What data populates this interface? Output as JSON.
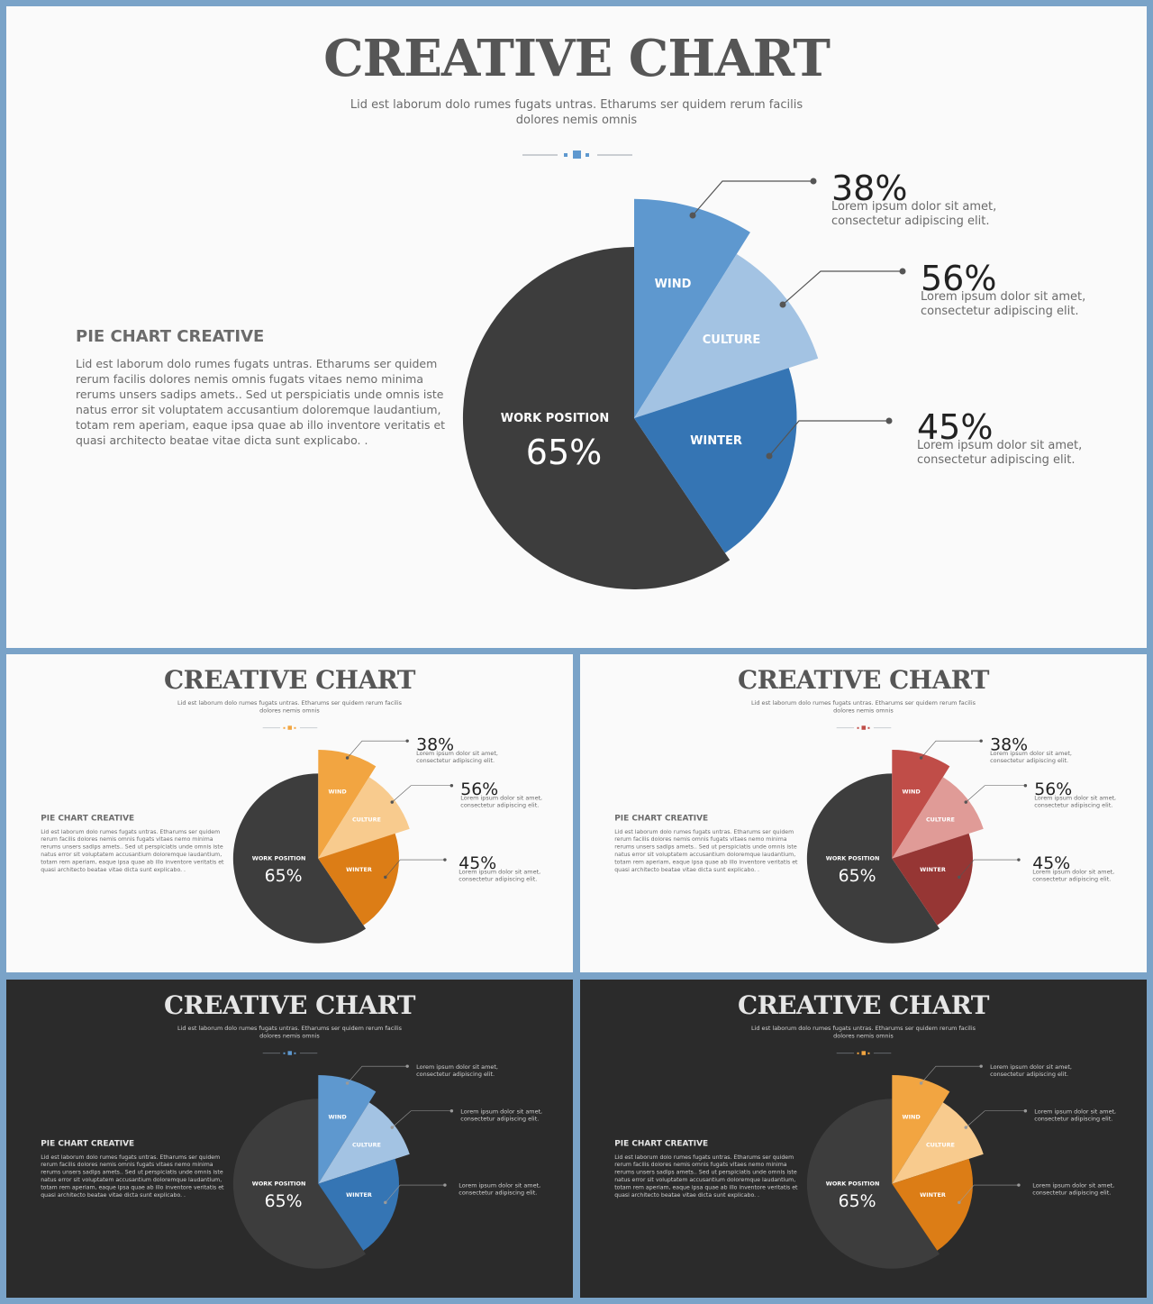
{
  "chart_data": [
    {
      "type": "pie",
      "title": "CREATIVE CHART",
      "subtitle_lines": [
        "Lid est laborum dolo rumes fugats untras. Etharums ser quidem rerum facilis",
        "dolores nemis omnis"
      ],
      "section_heading": "PIE CHART CREATIVE",
      "section_body_lines": [
        "Lid est laborum dolo rumes fugats untras. Etharums ser quidem",
        "rerum facilis dolores nemis omnis fugats vitaes nemo minima",
        "rerums unsers sadips amets.. Sed ut perspiciatis unde omnis iste",
        "natus error sit voluptatem accusantium doloremque laudantium,",
        "totam rem aperiam, eaque ipsa quae ab illo inventore veritatis et",
        "quasi architecto beatae vitae dicta sunt explicabo. ."
      ],
      "slices": [
        {
          "label": "WORK POSITION",
          "value": 65,
          "display": "65%"
        },
        {
          "label": "WIND",
          "value": 38,
          "display": "38%"
        },
        {
          "label": "CULTURE",
          "value": 56,
          "display": "56%"
        },
        {
          "label": "WINTER",
          "value": 45,
          "display": "45%"
        }
      ],
      "callouts": [
        {
          "value": "38%",
          "lines": [
            "Lorem ipsum dolor sit amet,",
            "consectetur adipiscing elit."
          ]
        },
        {
          "value": "56%",
          "lines": [
            "Lorem ipsum dolor sit amet,",
            "consectetur adipiscing elit."
          ]
        },
        {
          "value": "45%",
          "lines": [
            "Lorem ipsum dolor sit amet,",
            "consectetur adipiscing elit."
          ]
        }
      ]
    }
  ],
  "variants": [
    {
      "key": "main",
      "theme": "light",
      "colors": {
        "dark": "#3d3d3d",
        "wind": "#5e98cf",
        "culture": "#a3c3e3",
        "winter": "#3575b4",
        "accent": "#5e98cf"
      },
      "show_values": true
    },
    {
      "key": "orange-light",
      "theme": "light",
      "colors": {
        "dark": "#3d3d3d",
        "wind": "#f2a541",
        "culture": "#f8cb8e",
        "winter": "#dc7d16",
        "accent": "#f2a541"
      },
      "show_values": true
    },
    {
      "key": "red-light",
      "theme": "light",
      "colors": {
        "dark": "#3d3d3d",
        "wind": "#c04d48",
        "culture": "#e09b97",
        "winter": "#963634",
        "accent": "#c04d48"
      },
      "show_values": true
    },
    {
      "key": "blue-dark",
      "theme": "dark",
      "colors": {
        "dark": "#3d3d3d",
        "wind": "#5e98cf",
        "culture": "#a3c3e3",
        "winter": "#3575b4",
        "accent": "#5e98cf"
      },
      "show_values": false
    },
    {
      "key": "orange-dark",
      "theme": "dark",
      "colors": {
        "dark": "#3d3d3d",
        "wind": "#f2a541",
        "culture": "#f8cb8e",
        "winter": "#dc7d16",
        "accent": "#f2a541"
      },
      "show_values": false
    }
  ]
}
